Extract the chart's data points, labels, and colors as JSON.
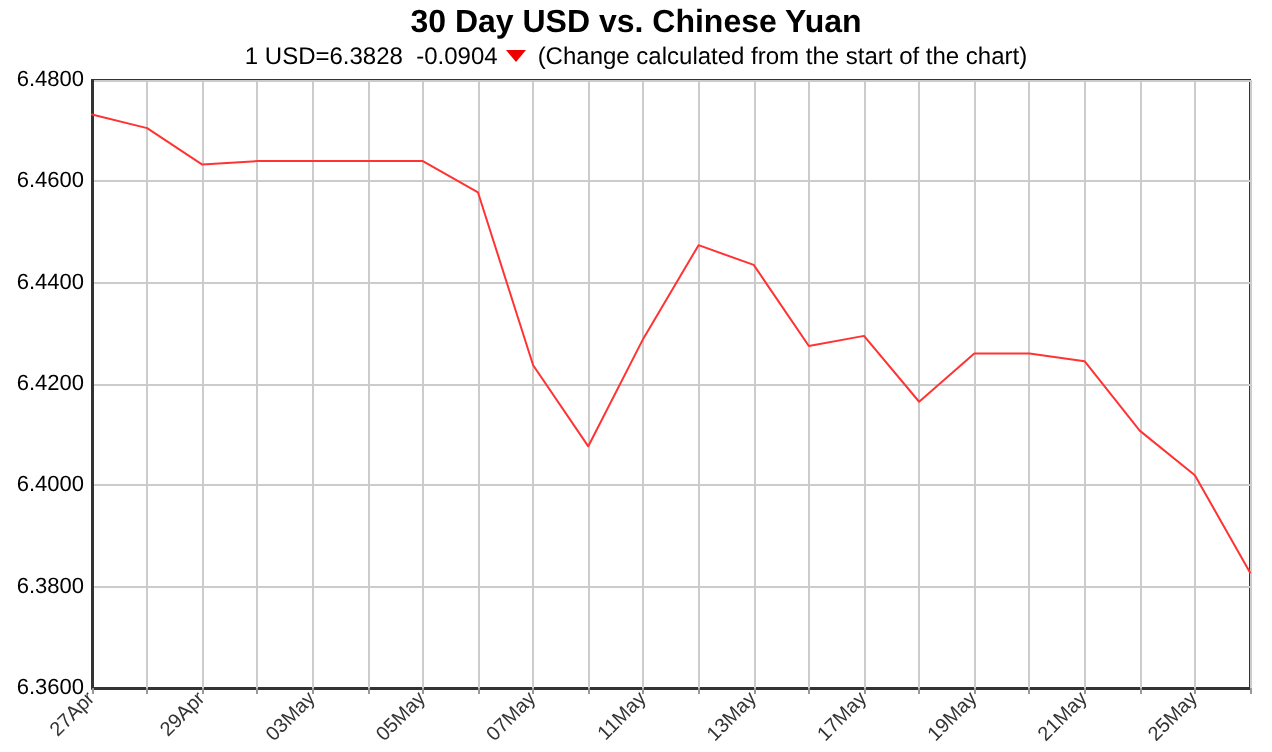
{
  "chart_data": {
    "type": "line",
    "title": "30 Day USD vs. Chinese Yuan",
    "subtitle": "1 USD=6.3828  -0.0904",
    "annotations": [
      "(Change calculated from the start of the chart)"
    ],
    "categories": [
      "27Apr",
      null,
      "29Apr",
      null,
      "03May",
      null,
      "05May",
      null,
      "07May",
      null,
      "11May",
      null,
      "13May",
      null,
      "17May",
      null,
      "19May",
      null,
      "21May",
      null,
      "25May",
      null
    ],
    "series": [
      {
        "color": "#ff3333",
        "values": [
          6.4732,
          6.4705,
          6.4633,
          6.464,
          6.464,
          6.464,
          6.464,
          6.4578,
          6.4237,
          6.4077,
          6.429,
          6.4474,
          6.4435,
          6.4275,
          6.4295,
          6.4165,
          6.426,
          6.426,
          6.4245,
          6.4108,
          6.402,
          6.3828
        ]
      }
    ],
    "ylim": [
      6.36,
      6.48
    ],
    "yticks": [
      {
        "value": 6.36,
        "label": "6.3600"
      },
      {
        "value": 6.38,
        "label": "6.3800"
      },
      {
        "value": 6.4,
        "label": "6.4000"
      },
      {
        "value": 6.42,
        "label": "6.4200"
      },
      {
        "value": 6.44,
        "label": "6.4400"
      },
      {
        "value": 6.46,
        "label": "6.4600"
      },
      {
        "value": 6.48,
        "label": "6.4800"
      }
    ],
    "grid": true,
    "marker": "none",
    "line_style": "solid"
  }
}
